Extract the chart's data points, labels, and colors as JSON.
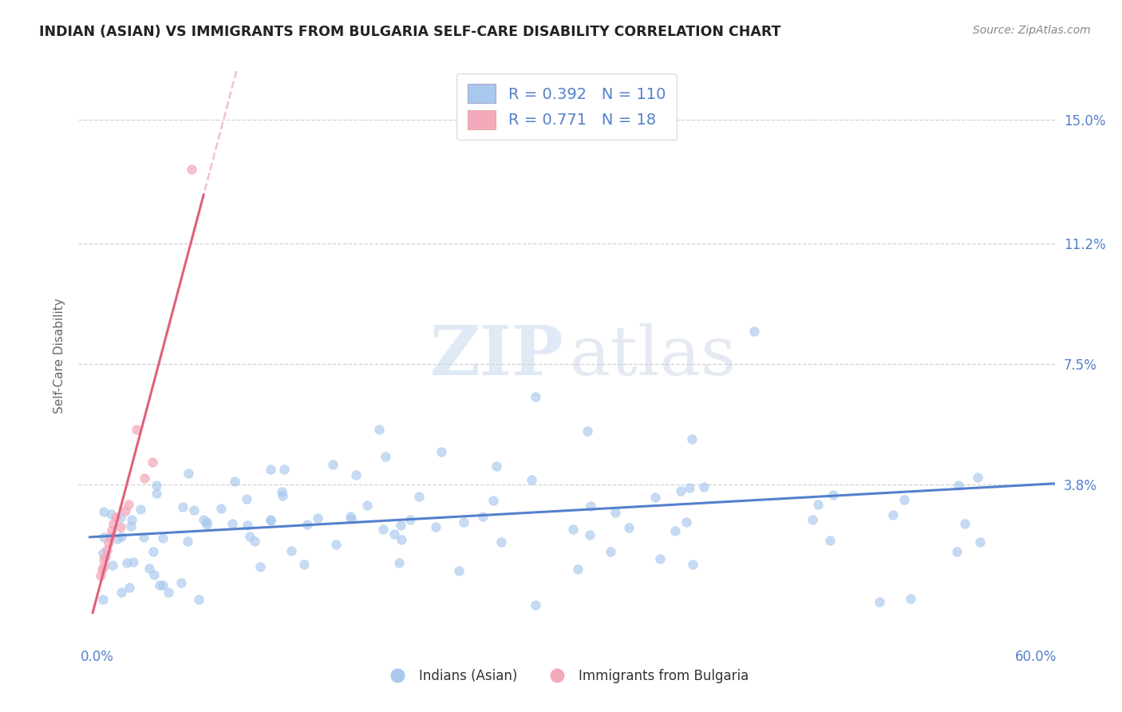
{
  "title": "INDIAN (ASIAN) VS IMMIGRANTS FROM BULGARIA SELF-CARE DISABILITY CORRELATION CHART",
  "source": "Source: ZipAtlas.com",
  "ylabel": "Self-Care Disability",
  "x_min": 0.0,
  "x_max": 0.6,
  "y_min": -0.01,
  "y_max": 0.165,
  "y_ticks": [
    0.038,
    0.075,
    0.112,
    0.15
  ],
  "y_tick_labels": [
    "3.8%",
    "7.5%",
    "11.2%",
    "15.0%"
  ],
  "blue_color": "#a8c8ee",
  "pink_color": "#f4aabb",
  "blue_line_color": "#5580cc",
  "pink_line_color": "#e0607a",
  "pink_dash_color": "#f0b0c0",
  "R_blue": 0.392,
  "N_blue": 110,
  "R_pink": 0.771,
  "N_pink": 18,
  "legend_label_blue": "Indians (Asian)",
  "legend_label_pink": "Immigrants from Bulgaria",
  "title_color": "#222222",
  "tick_label_color": "#5580cc",
  "watermark_zip": "ZIP",
  "watermark_atlas": "atlas",
  "grid_color": "#cccccc",
  "background_color": "#ffffff"
}
